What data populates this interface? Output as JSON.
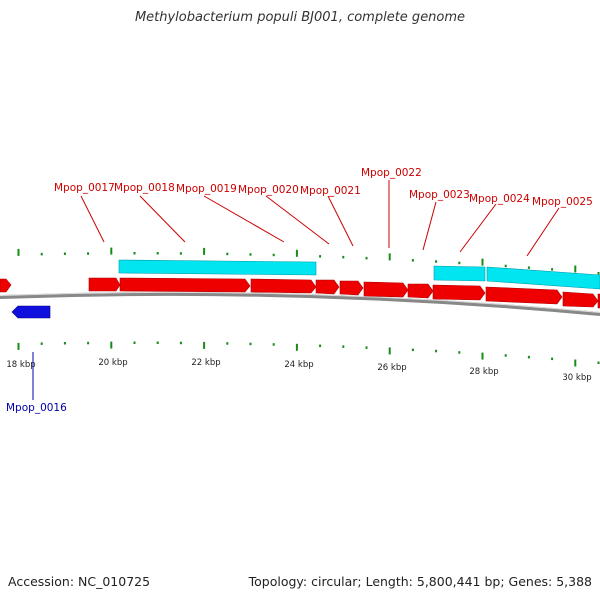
{
  "title": "Methylobacterium populi BJ001, complete genome",
  "footer": {
    "accession": "Accession: NC_010725",
    "topology": "Topology: circular; Length: 5,800,441 bp; Genes: 5,388"
  },
  "colors": {
    "forward_gene": "#ee0000",
    "reverse_gene": "#1010dd",
    "forward_label": "#cc0000",
    "reverse_label": "#0000aa",
    "feature_band": "#00e5f0",
    "backbone": "#888888",
    "tick": "#1a8a1a",
    "kbp_text": "#222222"
  },
  "kbp_labels": [
    "18 kbp",
    "20 kbp",
    "22 kbp",
    "24 kbp",
    "26 kbp",
    "28 kbp",
    "30 kbp"
  ],
  "forward_labels": [
    "Mpop_0017",
    "Mpop_0018",
    "Mpop_0019",
    "Mpop_0020",
    "Mpop_0021",
    "Mpop_0022",
    "Mpop_0023",
    "Mpop_0024",
    "Mpop_0025"
  ],
  "reverse_labels": [
    "Mpop_0016"
  ]
}
